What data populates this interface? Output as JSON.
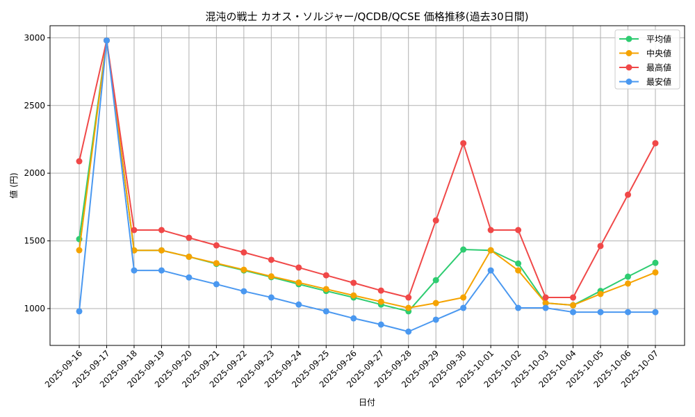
{
  "chart_data": {
    "type": "line",
    "title": "混沌の戦士 カオス・ソルジャー/QCDB/QCSE 価格推移(過去30日間)",
    "xlabel": "日付",
    "ylabel": "値 (円)",
    "ylim": [
      728,
      3089
    ],
    "yticks": [
      1000,
      1500,
      2000,
      2500,
      3000
    ],
    "grid": true,
    "legend_position": "upper right",
    "categories": [
      "2025-09-16",
      "2025-09-17",
      "2025-09-18",
      "2025-09-19",
      "2025-09-20",
      "2025-09-21",
      "2025-09-22",
      "2025-09-23",
      "2025-09-24",
      "2025-09-25",
      "2025-09-26",
      "2025-09-27",
      "2025-09-28",
      "2025-09-29",
      "2025-09-30",
      "2025-10-01",
      "2025-10-02",
      "2025-10-03",
      "2025-10-04",
      "2025-10-05",
      "2025-10-06",
      "2025-10-07"
    ],
    "series": [
      {
        "name": "平均値",
        "color": "#2ecc71",
        "values": [
          1513,
          2980,
          1430,
          1430,
          1383,
          1330,
          1282,
          1232,
          1180,
          1130,
          1082,
          1030,
          980,
          1210,
          1436,
          1430,
          1333,
          1041,
          1025,
          1130,
          1236,
          1338
        ]
      },
      {
        "name": "中央値",
        "color": "#f5a300",
        "values": [
          1431,
          2980,
          1430,
          1430,
          1383,
          1335,
          1287,
          1238,
          1192,
          1144,
          1097,
          1051,
          1005,
          1041,
          1082,
          1431,
          1282,
          1041,
          1025,
          1108,
          1185,
          1267
        ]
      },
      {
        "name": "最高値",
        "color": "#f04848",
        "values": [
          2088,
          2980,
          1580,
          1580,
          1523,
          1467,
          1415,
          1360,
          1303,
          1246,
          1190,
          1133,
          1082,
          1651,
          2221,
          1580,
          1580,
          1082,
          1082,
          1462,
          1841,
          2221
        ]
      },
      {
        "name": "最安値",
        "color": "#4a98f0",
        "values": [
          980,
          2980,
          1282,
          1282,
          1230,
          1180,
          1128,
          1082,
          1030,
          980,
          928,
          882,
          830,
          918,
          1005,
          1282,
          1005,
          1005,
          974,
          974,
          974,
          974
        ]
      }
    ]
  }
}
